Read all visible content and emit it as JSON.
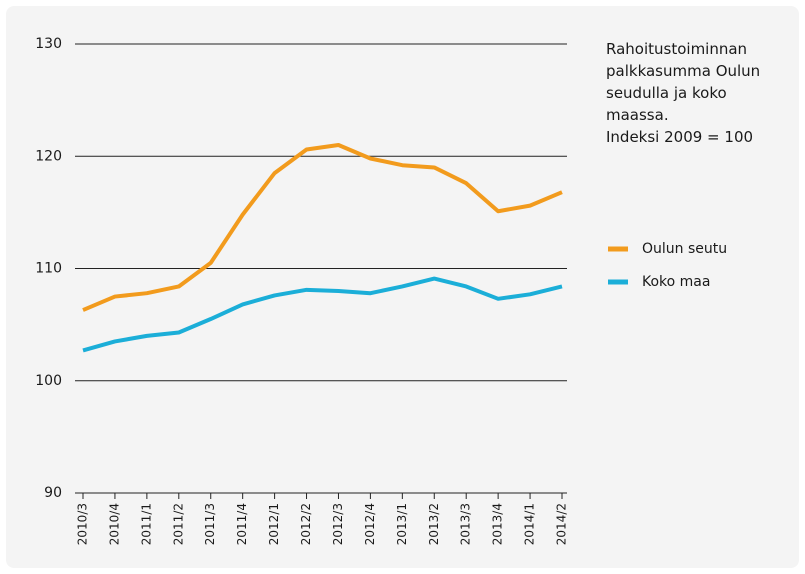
{
  "chart_data": {
    "type": "line",
    "title": "Rahoitustoiminnan palkkasumma Oulun seudulla ja koko maassa.",
    "subtitle": "Indeksi 2009 = 100",
    "categories": [
      "2010/3",
      "2010/4",
      "2011/1",
      "2011/2",
      "2011/3",
      "2011/4",
      "2012/1",
      "2012/2",
      "2012/3",
      "2012/4",
      "2013/1",
      "2013/2",
      "2013/3",
      "2013/4",
      "2014/1",
      "2014/2"
    ],
    "series": [
      {
        "name": "Oulun seutu",
        "color": "#f29b1d",
        "values": [
          106.3,
          107.5,
          107.8,
          108.4,
          110.5,
          114.8,
          118.5,
          120.6,
          121.0,
          119.8,
          119.2,
          119.0,
          117.6,
          115.1,
          115.6,
          116.8
        ]
      },
      {
        "name": "Koko maa",
        "color": "#1baed8",
        "values": [
          102.7,
          103.5,
          104.0,
          104.3,
          105.5,
          106.8,
          107.6,
          108.1,
          108.0,
          107.8,
          108.4,
          109.1,
          108.4,
          107.3,
          107.7,
          108.4
        ]
      }
    ],
    "ylim": [
      90,
      130
    ],
    "yticks": [
      90,
      100,
      110,
      120,
      130
    ],
    "grid": true,
    "legend": "right"
  }
}
